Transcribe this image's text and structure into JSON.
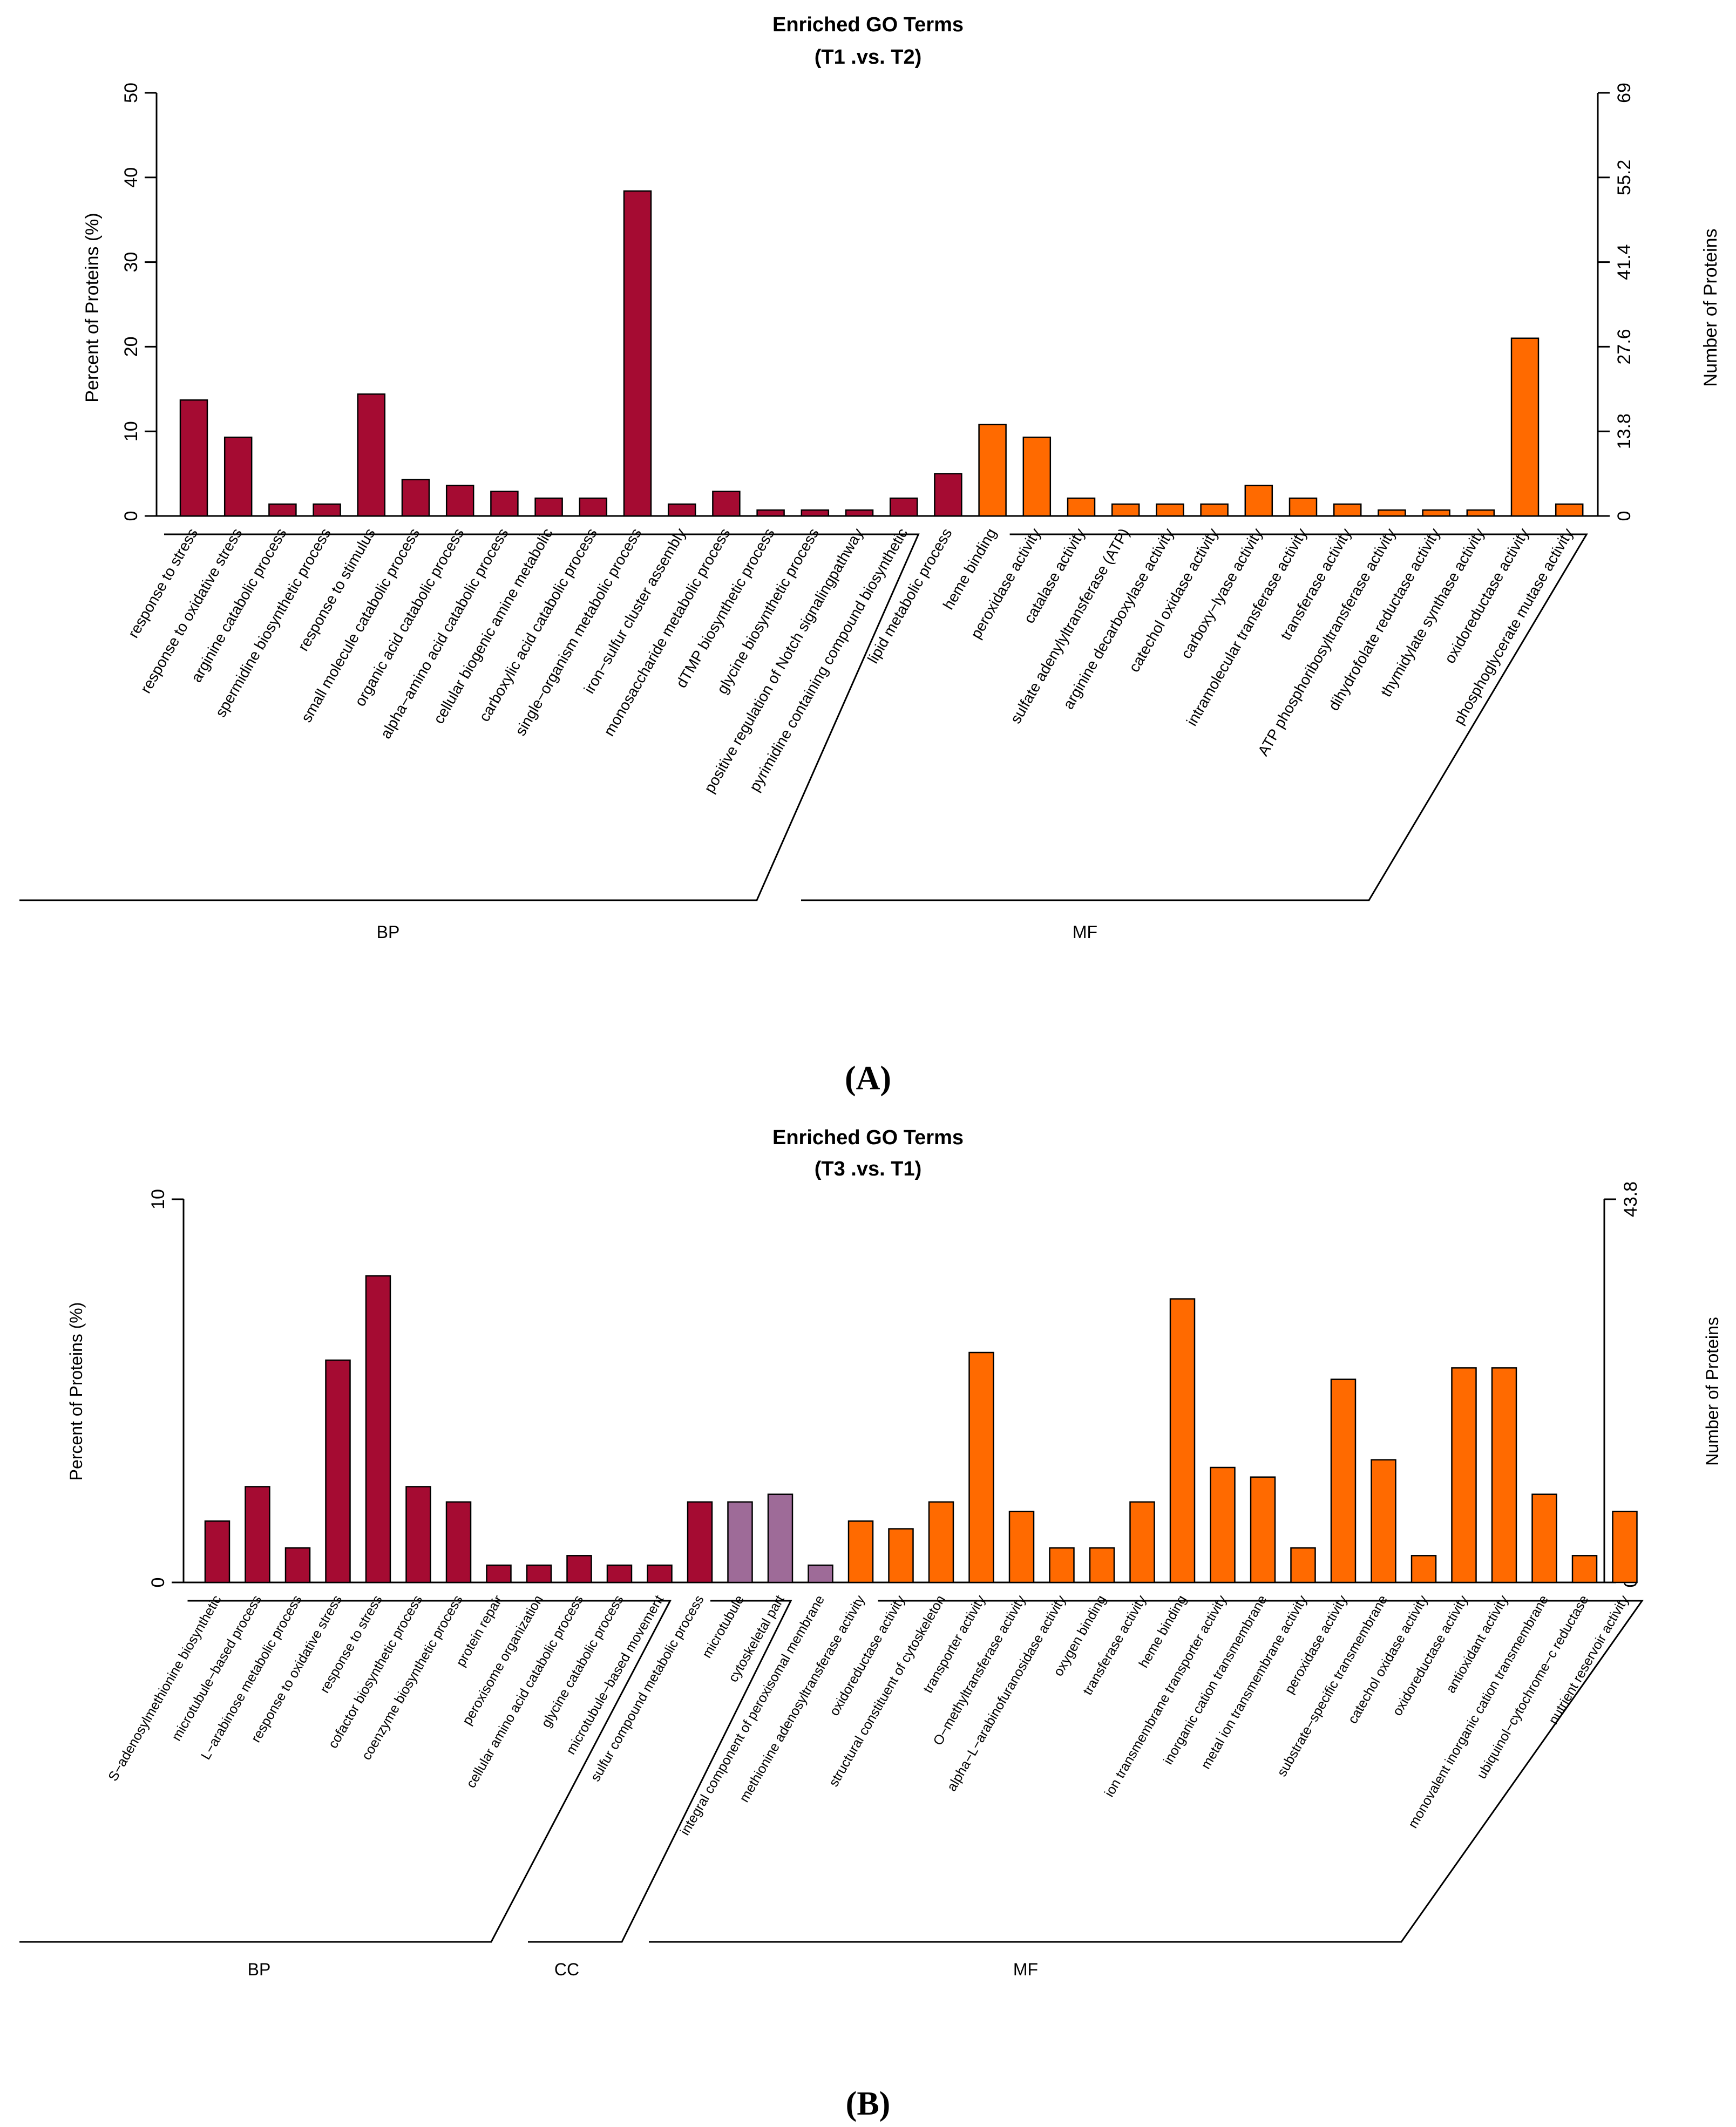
{
  "colors": {
    "BP": "#a50b32",
    "CC": "#9e6b98",
    "MF": "#ff6a00",
    "axis": "#000000"
  },
  "chart_data": [
    {
      "type": "bar",
      "panel_label": "(A)",
      "title": "Enriched GO Terms",
      "subtitle": "(T1 .vs. T2)",
      "ylabel": "Percent of Proteins (%)",
      "ylabel_right": "Number of Proteins",
      "ylim": [
        0,
        50
      ],
      "yticks": [
        "0",
        "10",
        "20",
        "30",
        "40",
        "50"
      ],
      "ylim_right": [
        0,
        69
      ],
      "yticks_right": [
        "0",
        "13.8",
        "27.6",
        "41.4",
        "55.2",
        "69"
      ],
      "categories": [
        "response to stress",
        "response to oxidative stress",
        "arginine catabolic process",
        "spermidine biosynthetic process",
        "response to stimulus",
        "small molecule catabolic process",
        "organic acid catabolic process",
        "alpha−amino acid catabolic process",
        "cellular biogenic amine metabolic",
        "carboxylic acid catabolic process",
        "single−organism metabolic process",
        "iron−sulfur cluster assembly",
        "monosaccharide metabolic process",
        "dTMP biosynthetic process",
        "glycine biosynthetic process",
        "positive regulation of Notch signalingpathway",
        "pyrimidine containing compound biosynthetic",
        "lipid metabolic process",
        "heme binding",
        "peroxidase activity",
        "catalase activity",
        "sulfate adenylyltransferase (ATP)",
        "arginine decarboxylase activity",
        "catechol oxidase activity",
        "carboxy−lyase activity",
        "intramolecular transferase activity",
        "transferase activity",
        "ATP phosphoribosyltransferase activity",
        "dihydrofolate reductase activity",
        "thymidylate synthase activity",
        "oxidoreductase activity",
        "phosphoglycerate mutase activity"
      ],
      "series": [
        {
          "name": "Percent of Proteins",
          "values": [
            13.7,
            9.3,
            1.4,
            1.4,
            14.4,
            4.3,
            3.6,
            2.9,
            2.1,
            2.1,
            38.4,
            1.4,
            2.9,
            0.7,
            0.7,
            0.7,
            2.1,
            5.0,
            10.8,
            9.3,
            2.1,
            1.4,
            1.4,
            1.4,
            3.6,
            2.1,
            1.4,
            0.7,
            0.7,
            0.7,
            21.0,
            1.4
          ]
        }
      ],
      "group_of_bar": [
        "BP",
        "BP",
        "BP",
        "BP",
        "BP",
        "BP",
        "BP",
        "BP",
        "BP",
        "BP",
        "BP",
        "BP",
        "BP",
        "BP",
        "BP",
        "BP",
        "BP",
        "BP",
        "MF",
        "MF",
        "MF",
        "MF",
        "MF",
        "MF",
        "MF",
        "MF",
        "MF",
        "MF",
        "MF",
        "MF",
        "MF",
        "MF"
      ],
      "groups": [
        {
          "label": "BP",
          "first": 0,
          "last": 17
        },
        {
          "label": "MF",
          "first": 18,
          "last": 31
        }
      ]
    },
    {
      "type": "bar",
      "panel_label": "(B)",
      "title": "Enriched GO Terms",
      "subtitle": "(T3 .vs. T1)",
      "ylabel": "Percent of Proteins (%)",
      "ylabel_right": "Number of Proteins",
      "ylim": [
        0,
        10
      ],
      "yticks": [
        "0",
        "10"
      ],
      "ylim_right": [
        0,
        43.8
      ],
      "yticks_right": [
        "0",
        "43.8"
      ],
      "categories": [
        "S−adenosylmethionine biosynthetic",
        "microtubule−based process",
        "L−arabinose metabolic process",
        "response to oxidative stress",
        "response to stress",
        "cofactor biosynthetic process",
        "coenzyme biosynthetic process",
        "protein repair",
        "peroxisome organization",
        "cellular amino acid catabolic process",
        "glycine catabolic process",
        "microtubule−based movement",
        "sulfur compound metabolic process",
        "microtubule",
        "cytoskeletal part",
        "integral component of peroxisomal membrane",
        "methionine adenosyltransferase activity",
        "oxidoreductase activity",
        "structural constituent of cytoskeleton",
        "transporter activity",
        "O−methyltransferase activity",
        "alpha−L−arabinofuranosidase activity",
        "oxygen binding",
        "transferase activity",
        "heme binding",
        "ion transmembrane transporter activity",
        "inorganic cation transmembrane",
        "metal ion transmembrane activity",
        "peroxidase activity",
        "substrate−specific transmembrane",
        "catechol oxidase activity",
        "oxidoreductase activity",
        "antioxidant activity",
        "monovalent inorganic cation transmembrane",
        "ubiquinol−cytochrome−c reductase",
        "nutrient reservoir activity"
      ],
      "series": [
        {
          "name": "Percent of Proteins",
          "values": [
            1.6,
            2.5,
            0.9,
            5.8,
            8.0,
            2.5,
            2.1,
            0.45,
            0.45,
            0.7,
            0.45,
            0.45,
            2.1,
            2.1,
            2.3,
            0.45,
            1.6,
            1.4,
            2.1,
            6.0,
            1.85,
            0.9,
            0.9,
            2.1,
            7.4,
            3.0,
            2.75,
            0.9,
            5.3,
            3.2,
            0.7,
            5.6,
            5.6,
            2.3,
            0.7,
            1.85
          ]
        }
      ],
      "group_of_bar": [
        "BP",
        "BP",
        "BP",
        "BP",
        "BP",
        "BP",
        "BP",
        "BP",
        "BP",
        "BP",
        "BP",
        "BP",
        "BP",
        "CC",
        "CC",
        "CC",
        "MF",
        "MF",
        "MF",
        "MF",
        "MF",
        "MF",
        "MF",
        "MF",
        "MF",
        "MF",
        "MF",
        "MF",
        "MF",
        "MF",
        "MF",
        "MF",
        "MF",
        "MF",
        "MF",
        "MF"
      ],
      "groups": [
        {
          "label": "BP",
          "first": 0,
          "last": 12
        },
        {
          "label": "CC",
          "first": 13,
          "last": 15
        },
        {
          "label": "MF",
          "first": 16,
          "last": 35
        }
      ]
    }
  ]
}
